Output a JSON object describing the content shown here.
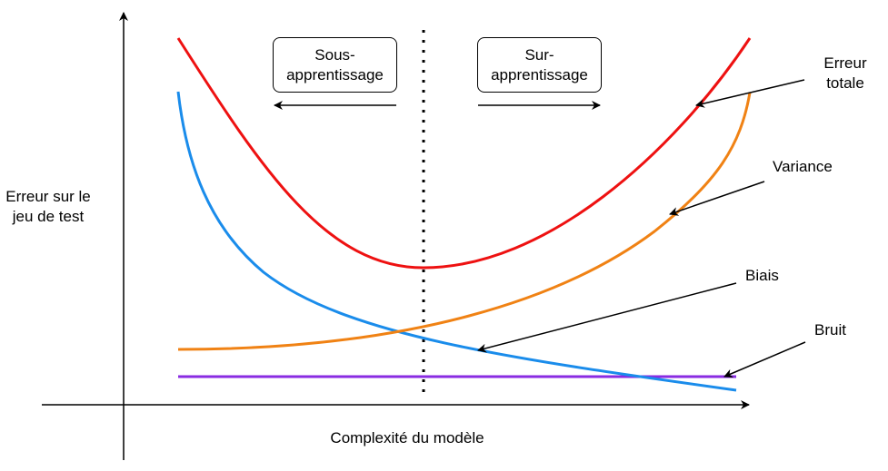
{
  "y_axis_label": {
    "line1": "Erreur sur le",
    "line2": "jeu de test"
  },
  "x_axis_label": "Complexité du modèle",
  "regions": {
    "underfitting": {
      "line1": "Sous-",
      "line2": "apprentissage"
    },
    "overfitting": {
      "line1": "Sur-",
      "line2": "apprentissage"
    }
  },
  "curve_labels": {
    "total_error": {
      "line1": "Erreur",
      "line2": "totale"
    },
    "variance": "Variance",
    "bias": "Biais",
    "noise": "Bruit"
  },
  "colors": {
    "total_error": "#ee1111",
    "variance": "#f08214",
    "bias": "#1a8ceb",
    "noise": "#8a2be2",
    "axis": "#000000"
  }
}
